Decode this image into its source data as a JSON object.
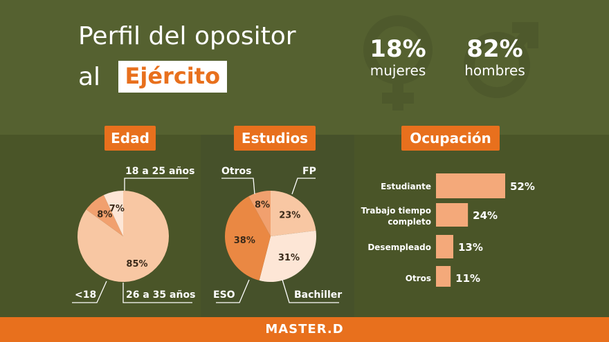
{
  "header": {
    "title_line1": "Perfil del opositor",
    "title_line2": "al",
    "title_highlight": "Ejército"
  },
  "gender": {
    "women_pct": "18%",
    "women_label": "mujeres",
    "men_pct": "82%",
    "men_label": "hombres"
  },
  "colors": {
    "accent": "#e8701d",
    "light_peach": "#f8c7a3",
    "mid_peach": "#f1a06e",
    "pale": "#fde6d6",
    "dark_orange": "#ea8843",
    "background": "#4e5a2b"
  },
  "footer": {
    "logo": "MASTER.D"
  },
  "chart_data": [
    {
      "type": "pie",
      "title": "Edad",
      "categories": [
        "18 a 25 años",
        "26 a 35 años",
        "<18"
      ],
      "values": [
        85,
        8,
        7
      ],
      "value_labels": [
        "85%",
        "8%",
        "7%"
      ],
      "colors": [
        "#f8c7a3",
        "#f1a06e",
        "#fde6d6"
      ]
    },
    {
      "type": "pie",
      "title": "Estudios",
      "categories": [
        "FP",
        "Bachiller",
        "ESO",
        "Otros"
      ],
      "values": [
        23,
        31,
        38,
        8
      ],
      "value_labels": [
        "23%",
        "31%",
        "38%",
        "8%"
      ],
      "colors": [
        "#f8c7a3",
        "#fde6d6",
        "#ea8843",
        "#f1a06e"
      ]
    },
    {
      "type": "bar",
      "title": "Ocupación",
      "orientation": "horizontal",
      "categories": [
        "Estudiante",
        "Trabajo tiempo completo",
        "Desempleado",
        "Otros"
      ],
      "values": [
        52,
        24,
        13,
        11
      ],
      "value_labels": [
        "52%",
        "24%",
        "13%",
        "11%"
      ],
      "color": "#f4a97a"
    }
  ]
}
